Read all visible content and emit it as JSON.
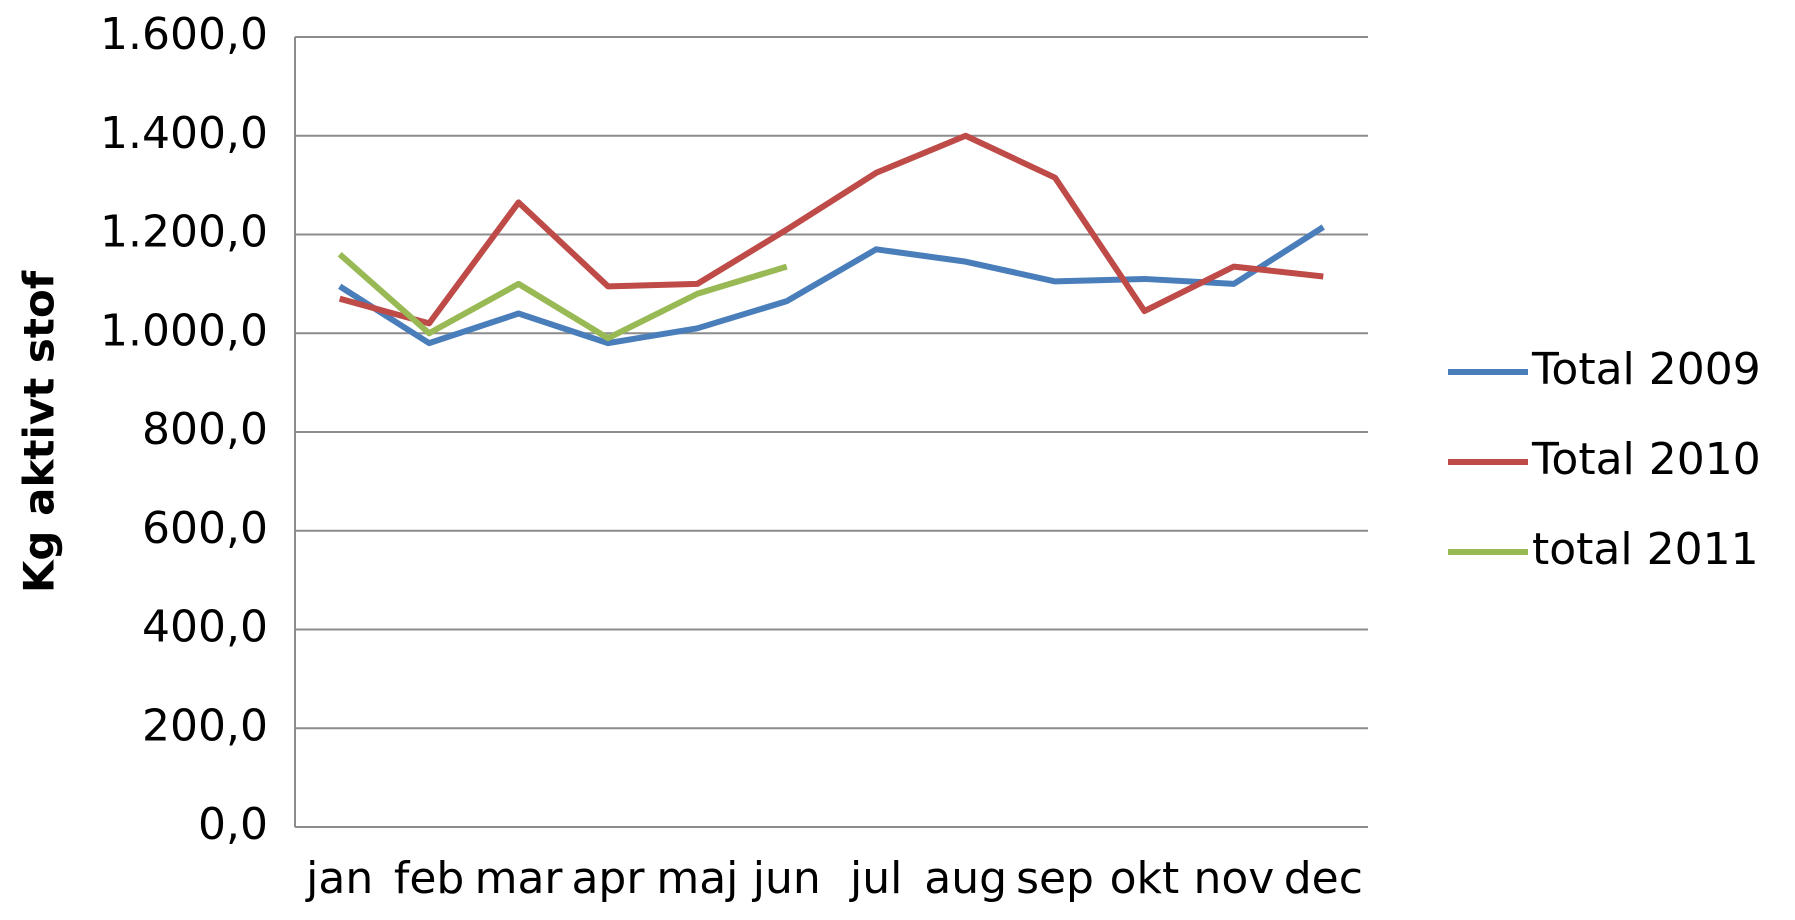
{
  "chart_data": {
    "type": "line",
    "y_label": "Kg aktivt stof",
    "categories": [
      "jan",
      "feb",
      "mar",
      "apr",
      "maj",
      "jun",
      "jul",
      "aug",
      "sep",
      "okt",
      "nov",
      "dec"
    ],
    "series": [
      {
        "name": "Total 2009",
        "color": "#4a7ebb",
        "values": [
          1095,
          980,
          1040,
          980,
          1010,
          1065,
          1170,
          1145,
          1105,
          1110,
          1100,
          1215
        ]
      },
      {
        "name": "Total 2010",
        "color": "#be4b48",
        "values": [
          1070,
          1020,
          1265,
          1095,
          1100,
          1210,
          1325,
          1400,
          1315,
          1045,
          1135,
          1115
        ]
      },
      {
        "name": "total 2011",
        "color": "#98b954",
        "values": [
          1160,
          1000,
          1100,
          990,
          1080,
          1135,
          null,
          null,
          null,
          null,
          null,
          null
        ]
      }
    ],
    "ylim": [
      0,
      1600
    ],
    "yticks": [
      {
        "value": 0,
        "label": "0,0"
      },
      {
        "value": 200,
        "label": "200,0"
      },
      {
        "value": 400,
        "label": "400,0"
      },
      {
        "value": 600,
        "label": "600,0"
      },
      {
        "value": 800,
        "label": "800,0"
      },
      {
        "value": 1000,
        "label": "1.000,0"
      },
      {
        "value": 1200,
        "label": "1.200,0"
      },
      {
        "value": 1400,
        "label": "1.400,0"
      },
      {
        "value": 1600,
        "label": "1.600,0"
      }
    ],
    "grid": true,
    "legend": "right"
  }
}
